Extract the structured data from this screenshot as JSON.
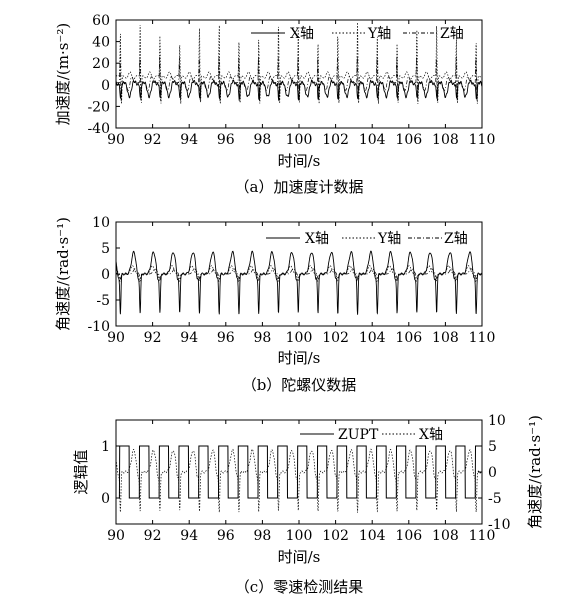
{
  "chart_data": [
    {
      "type": "line",
      "caption": "（a）加速度计数据",
      "xlabel": "时间/s",
      "ylabel": "加速度/(m·s⁻²)",
      "xlim": [
        90,
        110
      ],
      "ylim": [
        -40,
        60
      ],
      "xticks": [
        90,
        92,
        94,
        96,
        98,
        100,
        102,
        104,
        106,
        108,
        110
      ],
      "yticks": [
        -40,
        -20,
        0,
        20,
        40,
        60
      ],
      "legend_position": "top-right",
      "step_period_s": 1.08,
      "series": [
        {
          "name": "X轴",
          "line": "solid",
          "baseline": 0,
          "peak_max": 17,
          "peak_min": -16
        },
        {
          "name": "Y轴",
          "line": "dotted",
          "baseline": 8,
          "peak_max": 56,
          "peak_min": -24
        },
        {
          "name": "Z轴",
          "line": "dashed",
          "baseline": 2,
          "peak_max": 35,
          "peak_min": -20
        }
      ]
    },
    {
      "type": "line",
      "caption": "（b）陀螺仪数据",
      "xlabel": "时间/s",
      "ylabel": "角速度/(rad·s⁻¹)",
      "xlim": [
        90,
        110
      ],
      "ylim": [
        -10,
        10
      ],
      "xticks": [
        90,
        92,
        94,
        96,
        98,
        100,
        102,
        104,
        106,
        108,
        110
      ],
      "yticks": [
        -10,
        -5,
        0,
        5,
        10
      ],
      "legend_position": "top-right",
      "step_period_s": 1.08,
      "series": [
        {
          "name": "X轴",
          "line": "solid",
          "peak_max": 4.3,
          "peak_min": -8
        },
        {
          "name": "Y轴",
          "line": "dotted",
          "peak_max": 1.8,
          "peak_min": -1.5
        },
        {
          "name": "Z轴",
          "line": "dashed",
          "peak_max": 1.2,
          "peak_min": -1.0
        }
      ]
    },
    {
      "type": "line",
      "caption": "（c）零速检测结果",
      "xlabel": "时间/s",
      "ylabel": "逻辑值",
      "ylabel_right": "角速度/(rad·s⁻¹)",
      "xlim": [
        90,
        110
      ],
      "ylim": [
        -0.5,
        1.5
      ],
      "ylim_right": [
        -10,
        10
      ],
      "xticks": [
        90,
        92,
        94,
        96,
        98,
        100,
        102,
        104,
        106,
        108,
        110
      ],
      "yticks": [
        0,
        1
      ],
      "yticks_right": [
        -10,
        -5,
        0,
        5,
        10
      ],
      "legend_position": "top-right",
      "step_period_s": 1.08,
      "series": [
        {
          "name": "ZUPT",
          "line": "solid",
          "axis": "left",
          "values_range": [
            0,
            1
          ]
        },
        {
          "name": "X轴",
          "line": "dotted",
          "axis": "right",
          "peak_max": 4.3,
          "peak_min": -8
        }
      ]
    }
  ]
}
